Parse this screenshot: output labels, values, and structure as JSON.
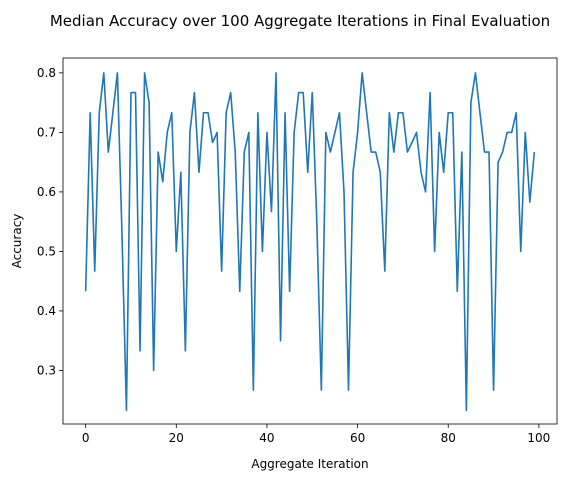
{
  "chart_data": {
    "type": "line",
    "title": "Median Accuracy over 100 Aggregate Iterations in Final Evaluation",
    "xlabel": "Aggregate Iteration",
    "ylabel": "Accuracy",
    "xlim": [
      -5,
      104
    ],
    "ylim": [
      0.21,
      0.825
    ],
    "xticks": [
      0,
      20,
      40,
      60,
      80,
      100
    ],
    "yticks": [
      0.3,
      0.4,
      0.5,
      0.6,
      0.7,
      0.8
    ],
    "grid": false,
    "line_color": "#1f77b4",
    "series": [
      {
        "x": [
          0,
          1,
          2,
          3,
          4,
          5,
          6,
          7,
          8,
          9,
          10,
          11,
          12,
          13,
          14,
          15,
          16,
          17,
          18,
          19,
          20,
          21,
          22,
          23,
          24,
          25,
          26,
          27,
          28,
          29,
          30,
          31,
          32,
          33,
          34,
          35,
          36,
          37,
          38,
          39,
          40,
          41,
          42,
          43,
          44,
          45,
          46,
          47,
          48,
          49,
          50,
          51,
          52,
          53,
          54,
          55,
          56,
          57,
          58,
          59,
          60,
          61,
          62,
          63,
          64,
          65,
          66,
          67,
          68,
          69,
          70,
          71,
          72,
          73,
          74,
          75,
          76,
          77,
          78,
          79,
          80,
          81,
          82,
          83,
          84,
          85,
          86,
          87,
          88,
          89,
          90,
          91,
          92,
          93,
          94,
          95,
          96,
          97,
          98,
          99
        ],
        "values": [
          0.433,
          0.733,
          0.467,
          0.733,
          0.8,
          0.667,
          0.733,
          0.8,
          0.533,
          0.233,
          0.767,
          0.767,
          0.333,
          0.8,
          0.75,
          0.3,
          0.667,
          0.617,
          0.7,
          0.733,
          0.5,
          0.633,
          0.333,
          0.7,
          0.767,
          0.633,
          0.733,
          0.733,
          0.683,
          0.7,
          0.467,
          0.733,
          0.767,
          0.667,
          0.433,
          0.667,
          0.7,
          0.267,
          0.733,
          0.5,
          0.7,
          0.567,
          0.8,
          0.35,
          0.733,
          0.433,
          0.7,
          0.767,
          0.767,
          0.633,
          0.767,
          0.55,
          0.267,
          0.7,
          0.667,
          0.7,
          0.733,
          0.6,
          0.267,
          0.633,
          0.7,
          0.8,
          0.733,
          0.667,
          0.667,
          0.633,
          0.467,
          0.733,
          0.667,
          0.733,
          0.733,
          0.667,
          0.683,
          0.7,
          0.633,
          0.6,
          0.767,
          0.5,
          0.7,
          0.633,
          0.733,
          0.733,
          0.433,
          0.667,
          0.233,
          0.75,
          0.8,
          0.733,
          0.667,
          0.667,
          0.267,
          0.65,
          0.667,
          0.7,
          0.7,
          0.733,
          0.5,
          0.7,
          0.583,
          0.667
        ]
      }
    ]
  }
}
